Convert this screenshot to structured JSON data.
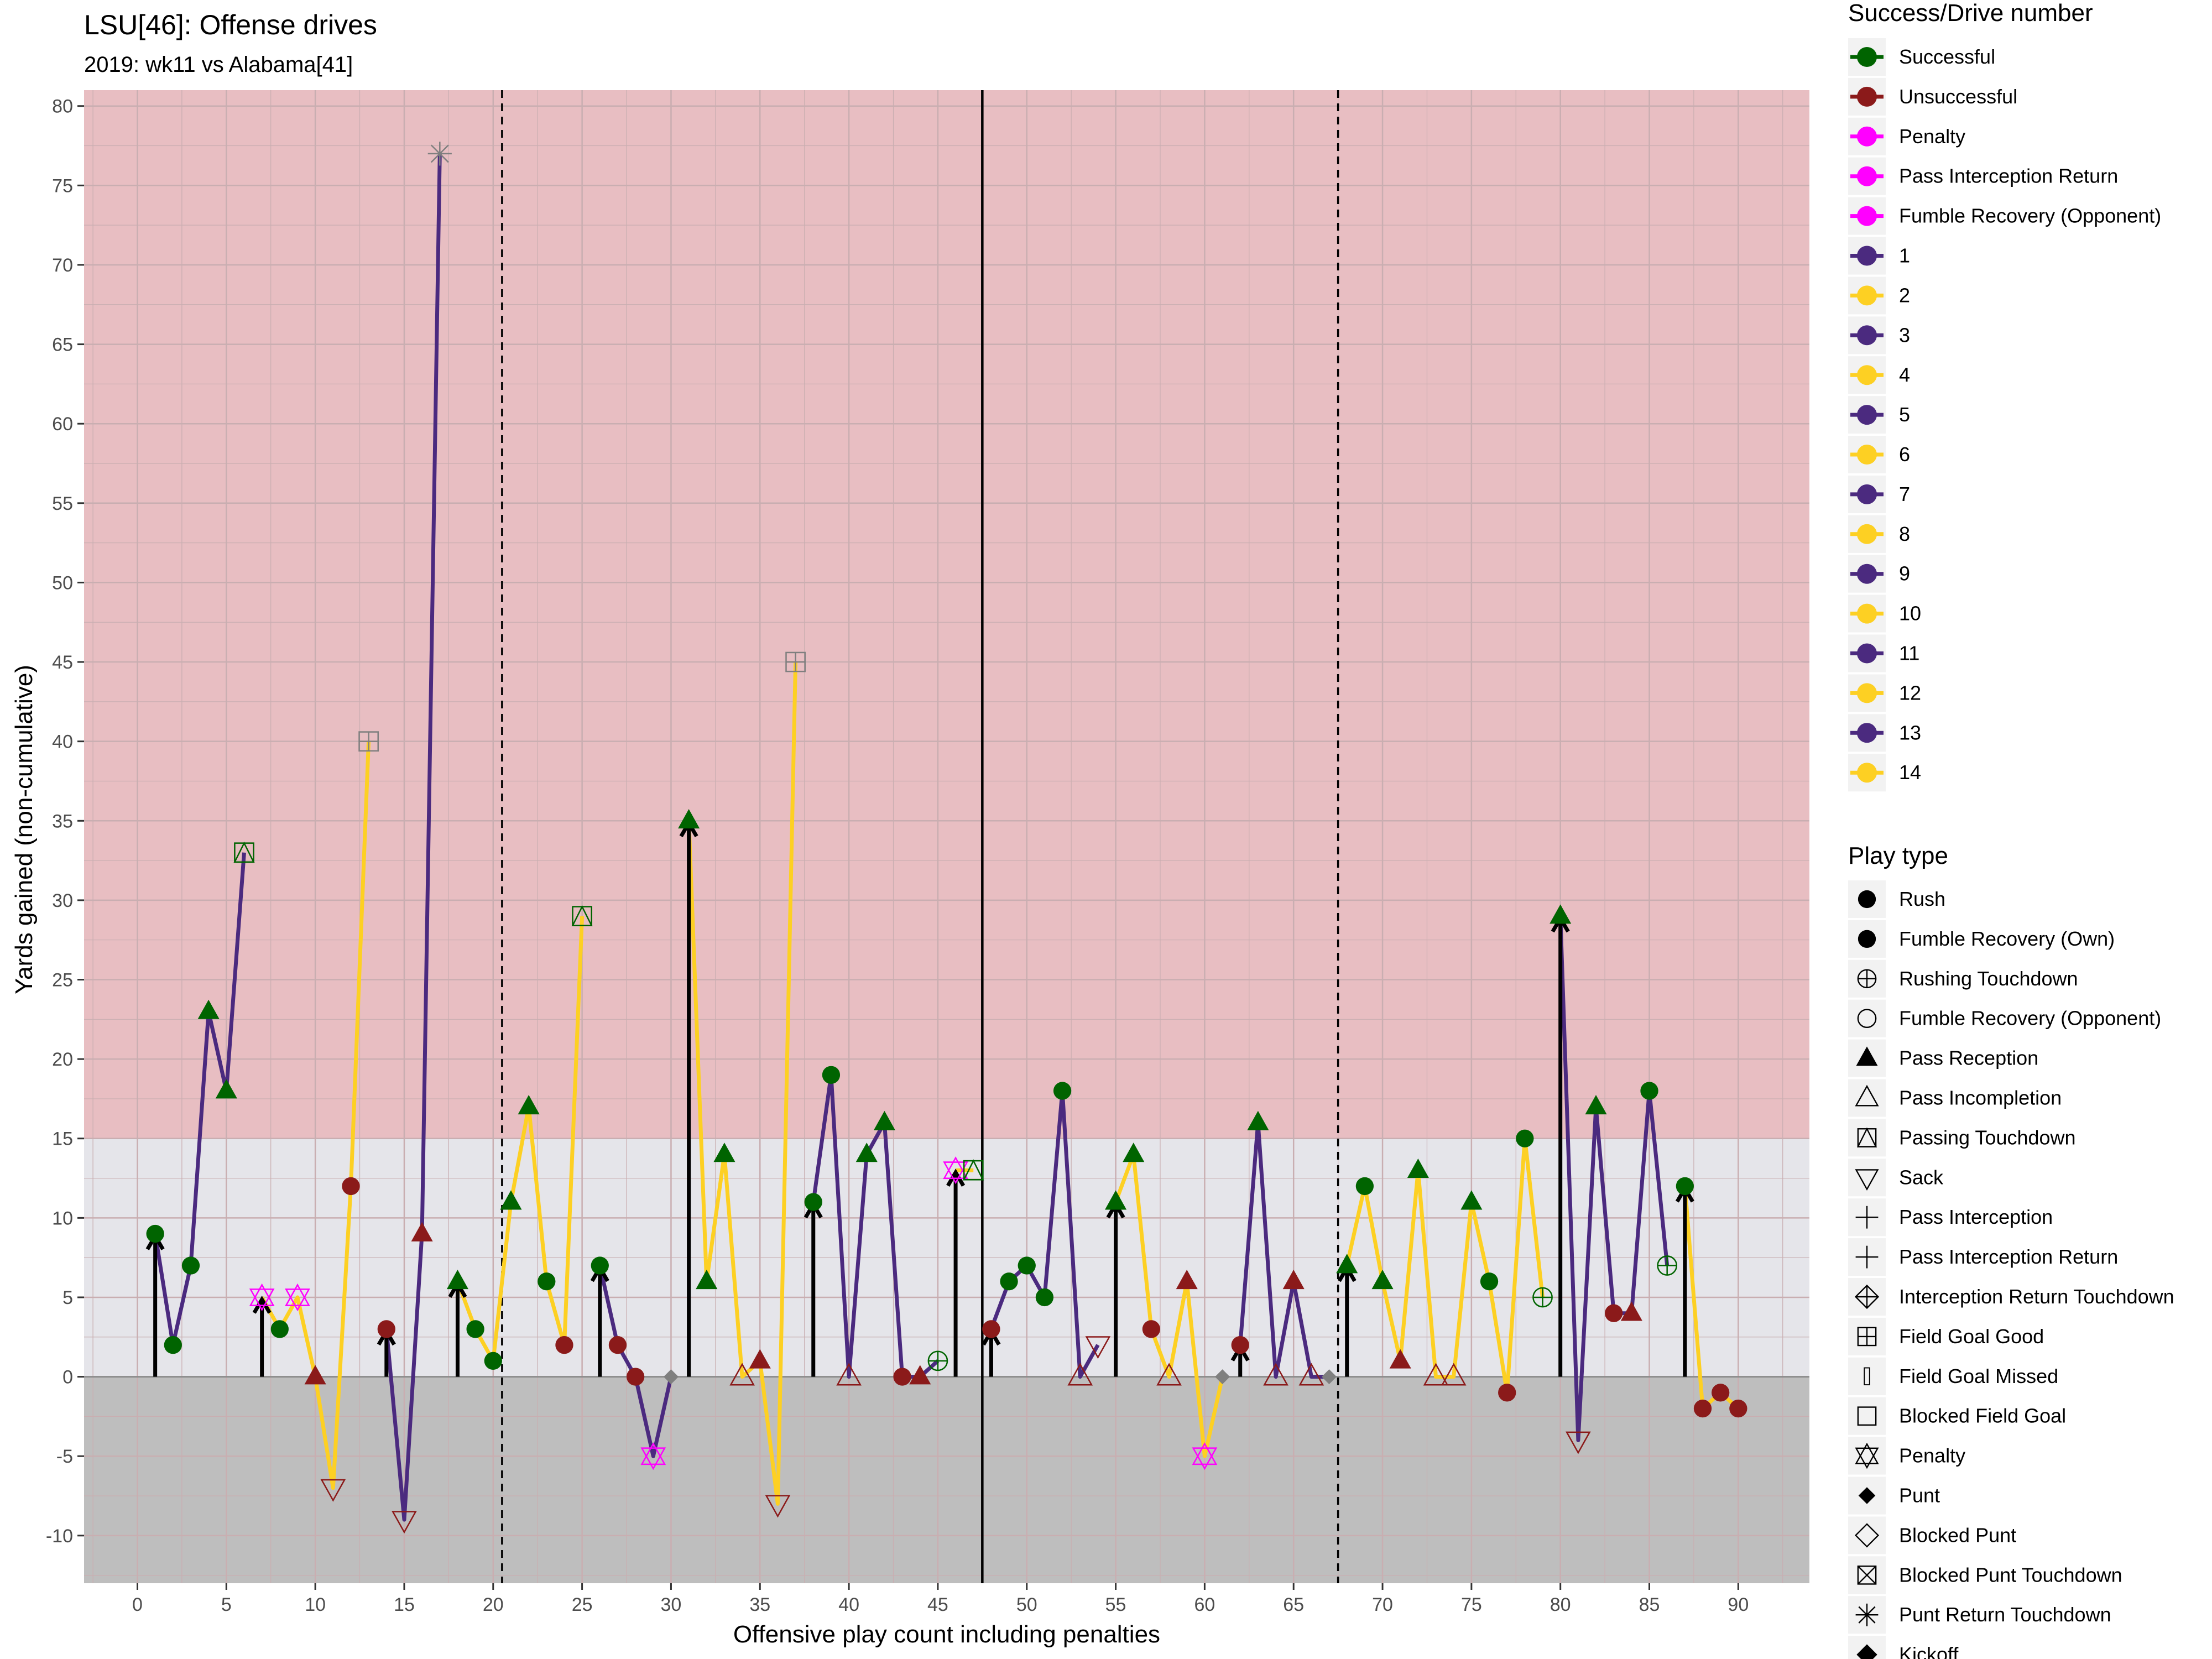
{
  "chart_data": {
    "type": "line",
    "title": "LSU[46]: Offense drives",
    "subtitle": "2019: wk11 vs Alabama[41]",
    "xlabel": "Offensive play count including penalties",
    "ylabel": "Yards gained (non-cumulative)",
    "xlim": [
      -3,
      94
    ],
    "ylim": [
      -13,
      81
    ],
    "x_ticks": [
      0,
      5,
      10,
      15,
      20,
      25,
      30,
      35,
      40,
      45,
      50,
      55,
      60,
      65,
      70,
      75,
      80,
      85,
      90
    ],
    "y_ticks": [
      -10,
      -5,
      0,
      5,
      10,
      15,
      20,
      25,
      30,
      35,
      40,
      45,
      50,
      55,
      60,
      65,
      70,
      75,
      80
    ],
    "grid": true,
    "legend_position": "right",
    "background_bands": [
      {
        "from": 15,
        "to": 81,
        "color": "#E8BEC2"
      },
      {
        "from": 0,
        "to": 15,
        "color": "#E5E5EA"
      },
      {
        "from": -13,
        "to": 0,
        "color": "#BEBEBE"
      }
    ],
    "vertical_lines": [
      {
        "x": 20.5,
        "style": "dashed"
      },
      {
        "x": 47.5,
        "style": "solid"
      },
      {
        "x": 67.5,
        "style": "dashed"
      }
    ],
    "drive_colors": {
      "odd": "#4B2A7F",
      "even": "#FDD023"
    },
    "success_colors": {
      "Successful": "#006400",
      "Unsuccessful": "#8B1A1A",
      "Penalty": "#FF00FF",
      "Other": "#7F7F7F"
    },
    "first_down_arrows": [
      {
        "x": 1,
        "y": 9
      },
      {
        "x": 7,
        "y": 5
      },
      {
        "x": 14,
        "y": 3
      },
      {
        "x": 18,
        "y": 6
      },
      {
        "x": 26,
        "y": 7
      },
      {
        "x": 31,
        "y": 35
      },
      {
        "x": 38,
        "y": 11
      },
      {
        "x": 46,
        "y": 13
      },
      {
        "x": 48,
        "y": 3
      },
      {
        "x": 55,
        "y": 11
      },
      {
        "x": 62,
        "y": 2
      },
      {
        "x": 68,
        "y": 7
      },
      {
        "x": 80,
        "y": 29
      },
      {
        "x": 87,
        "y": 12
      }
    ],
    "drives": [
      {
        "drive": 1,
        "points": [
          {
            "x": 1,
            "y": 9,
            "shape": "Rush",
            "result": "Successful"
          },
          {
            "x": 2,
            "y": 2,
            "shape": "Rush",
            "result": "Successful"
          },
          {
            "x": 3,
            "y": 7,
            "shape": "Rush",
            "result": "Successful"
          },
          {
            "x": 4,
            "y": 23,
            "shape": "Pass Reception",
            "result": "Successful"
          },
          {
            "x": 5,
            "y": 18,
            "shape": "Pass Reception",
            "result": "Successful"
          },
          {
            "x": 6,
            "y": 33,
            "shape": "Passing Touchdown",
            "result": "Successful"
          }
        ]
      },
      {
        "drive": 2,
        "points": [
          {
            "x": 7,
            "y": 5,
            "shape": "Penalty",
            "result": "Penalty"
          },
          {
            "x": 8,
            "y": 3,
            "shape": "Rush",
            "result": "Successful"
          },
          {
            "x": 9,
            "y": 5,
            "shape": "Penalty",
            "result": "Penalty"
          },
          {
            "x": 10,
            "y": 0,
            "shape": "Pass Reception",
            "result": "Unsuccessful"
          },
          {
            "x": 11,
            "y": -7,
            "shape": "Sack",
            "result": "Unsuccessful"
          },
          {
            "x": 12,
            "y": 12,
            "shape": "Rush",
            "result": "Unsuccessful"
          },
          {
            "x": 13,
            "y": 40,
            "shape": "Field Goal Good",
            "result": "Other"
          }
        ]
      },
      {
        "drive": 3,
        "points": [
          {
            "x": 14,
            "y": 3,
            "shape": "Rush",
            "result": "Unsuccessful"
          },
          {
            "x": 15,
            "y": -9,
            "shape": "Sack",
            "result": "Unsuccessful"
          },
          {
            "x": 16,
            "y": 9,
            "shape": "Pass Reception",
            "result": "Unsuccessful"
          },
          {
            "x": 17,
            "y": 77,
            "shape": "Punt Return Touchdown",
            "result": "Other"
          }
        ]
      },
      {
        "drive": 4,
        "points": [
          {
            "x": 18,
            "y": 6,
            "shape": "Pass Reception",
            "result": "Successful"
          },
          {
            "x": 19,
            "y": 3,
            "shape": "Rush",
            "result": "Successful"
          },
          {
            "x": 20,
            "y": 1,
            "shape": "Rush",
            "result": "Successful"
          },
          {
            "x": 21,
            "y": 11,
            "shape": "Pass Reception",
            "result": "Successful"
          },
          {
            "x": 22,
            "y": 17,
            "shape": "Pass Reception",
            "result": "Successful"
          },
          {
            "x": 23,
            "y": 6,
            "shape": "Rush",
            "result": "Successful"
          },
          {
            "x": 24,
            "y": 2,
            "shape": "Rush",
            "result": "Unsuccessful"
          },
          {
            "x": 25,
            "y": 29,
            "shape": "Passing Touchdown",
            "result": "Successful"
          }
        ]
      },
      {
        "drive": 5,
        "points": [
          {
            "x": 26,
            "y": 7,
            "shape": "Rush",
            "result": "Successful"
          },
          {
            "x": 27,
            "y": 2,
            "shape": "Rush",
            "result": "Unsuccessful"
          },
          {
            "x": 28,
            "y": 0,
            "shape": "Rush",
            "result": "Unsuccessful"
          },
          {
            "x": 29,
            "y": -5,
            "shape": "Penalty",
            "result": "Penalty"
          },
          {
            "x": 30,
            "y": 0,
            "shape": "Punt",
            "result": "Other"
          }
        ]
      },
      {
        "drive": 6,
        "points": [
          {
            "x": 31,
            "y": 35,
            "shape": "Pass Reception",
            "result": "Successful"
          },
          {
            "x": 32,
            "y": 6,
            "shape": "Pass Reception",
            "result": "Successful"
          },
          {
            "x": 33,
            "y": 14,
            "shape": "Pass Reception",
            "result": "Successful"
          },
          {
            "x": 34,
            "y": 0,
            "shape": "Pass Incompletion",
            "result": "Unsuccessful"
          },
          {
            "x": 35,
            "y": 1,
            "shape": "Pass Reception",
            "result": "Unsuccessful"
          },
          {
            "x": 36,
            "y": -8,
            "shape": "Sack",
            "result": "Unsuccessful"
          },
          {
            "x": 37,
            "y": 45,
            "shape": "Field Goal Good",
            "result": "Other"
          }
        ]
      },
      {
        "drive": 7,
        "points": [
          {
            "x": 38,
            "y": 11,
            "shape": "Rush",
            "result": "Successful"
          },
          {
            "x": 39,
            "y": 19,
            "shape": "Rush",
            "result": "Successful"
          },
          {
            "x": 40,
            "y": 0,
            "shape": "Pass Incompletion",
            "result": "Unsuccessful"
          },
          {
            "x": 41,
            "y": 14,
            "shape": "Pass Reception",
            "result": "Successful"
          },
          {
            "x": 42,
            "y": 16,
            "shape": "Pass Reception",
            "result": "Successful"
          },
          {
            "x": 43,
            "y": 0,
            "shape": "Rush",
            "result": "Unsuccessful"
          },
          {
            "x": 44,
            "y": 0,
            "shape": "Pass Reception",
            "result": "Unsuccessful"
          },
          {
            "x": 45,
            "y": 1,
            "shape": "Rushing Touchdown",
            "result": "Successful"
          }
        ]
      },
      {
        "drive": 8,
        "points": [
          {
            "x": 46,
            "y": 13,
            "shape": "Penalty",
            "result": "Penalty"
          },
          {
            "x": 47,
            "y": 13,
            "shape": "Passing Touchdown",
            "result": "Successful"
          }
        ]
      },
      {
        "drive": 9,
        "points": [
          {
            "x": 48,
            "y": 3,
            "shape": "Rush",
            "result": "Unsuccessful"
          },
          {
            "x": 49,
            "y": 6,
            "shape": "Rush",
            "result": "Successful"
          },
          {
            "x": 50,
            "y": 7,
            "shape": "Rush",
            "result": "Successful"
          },
          {
            "x": 51,
            "y": 5,
            "shape": "Rush",
            "result": "Successful"
          },
          {
            "x": 52,
            "y": 18,
            "shape": "Rush",
            "result": "Successful"
          },
          {
            "x": 53,
            "y": 0,
            "shape": "Pass Incompletion",
            "result": "Unsuccessful"
          },
          {
            "x": 54,
            "y": 2,
            "shape": "Sack",
            "result": "Unsuccessful"
          }
        ]
      },
      {
        "drive": 10,
        "points": [
          {
            "x": 55,
            "y": 11,
            "shape": "Pass Reception",
            "result": "Successful"
          },
          {
            "x": 56,
            "y": 14,
            "shape": "Pass Reception",
            "result": "Successful"
          },
          {
            "x": 57,
            "y": 3,
            "shape": "Rush",
            "result": "Unsuccessful"
          },
          {
            "x": 58,
            "y": 0,
            "shape": "Pass Incompletion",
            "result": "Unsuccessful"
          },
          {
            "x": 59,
            "y": 6,
            "shape": "Pass Reception",
            "result": "Unsuccessful"
          },
          {
            "x": 60,
            "y": -5,
            "shape": "Penalty",
            "result": "Penalty"
          },
          {
            "x": 61,
            "y": 0,
            "shape": "Punt",
            "result": "Other"
          }
        ]
      },
      {
        "drive": 11,
        "points": [
          {
            "x": 62,
            "y": 2,
            "shape": "Rush",
            "result": "Unsuccessful"
          },
          {
            "x": 63,
            "y": 16,
            "shape": "Pass Reception",
            "result": "Successful"
          },
          {
            "x": 64,
            "y": 0,
            "shape": "Pass Incompletion",
            "result": "Unsuccessful"
          },
          {
            "x": 65,
            "y": 6,
            "shape": "Pass Reception",
            "result": "Unsuccessful"
          },
          {
            "x": 66,
            "y": 0,
            "shape": "Pass Incompletion",
            "result": "Unsuccessful"
          },
          {
            "x": 67,
            "y": 0,
            "shape": "Punt",
            "result": "Other"
          }
        ]
      },
      {
        "drive": 12,
        "points": [
          {
            "x": 68,
            "y": 7,
            "shape": "Pass Reception",
            "result": "Successful"
          },
          {
            "x": 69,
            "y": 12,
            "shape": "Rush",
            "result": "Successful"
          },
          {
            "x": 70,
            "y": 6,
            "shape": "Pass Reception",
            "result": "Successful"
          },
          {
            "x": 71,
            "y": 1,
            "shape": "Pass Reception",
            "result": "Unsuccessful"
          },
          {
            "x": 72,
            "y": 13,
            "shape": "Pass Reception",
            "result": "Successful"
          },
          {
            "x": 73,
            "y": 0,
            "shape": "Pass Incompletion",
            "result": "Unsuccessful"
          },
          {
            "x": 74,
            "y": 0,
            "shape": "Pass Incompletion",
            "result": "Unsuccessful"
          },
          {
            "x": 75,
            "y": 11,
            "shape": "Pass Reception",
            "result": "Successful"
          },
          {
            "x": 76,
            "y": 6,
            "shape": "Rush",
            "result": "Successful"
          },
          {
            "x": 77,
            "y": -1,
            "shape": "Rush",
            "result": "Unsuccessful"
          },
          {
            "x": 78,
            "y": 15,
            "shape": "Rush",
            "result": "Successful"
          },
          {
            "x": 79,
            "y": 5,
            "shape": "Rushing Touchdown",
            "result": "Successful"
          }
        ]
      },
      {
        "drive": 13,
        "points": [
          {
            "x": 80,
            "y": 29,
            "shape": "Pass Reception",
            "result": "Successful"
          },
          {
            "x": 81,
            "y": -4,
            "shape": "Sack",
            "result": "Unsuccessful"
          },
          {
            "x": 82,
            "y": 17,
            "shape": "Pass Reception",
            "result": "Successful"
          },
          {
            "x": 83,
            "y": 4,
            "shape": "Rush",
            "result": "Unsuccessful"
          },
          {
            "x": 84,
            "y": 4,
            "shape": "Pass Reception",
            "result": "Unsuccessful"
          },
          {
            "x": 85,
            "y": 18,
            "shape": "Rush",
            "result": "Successful"
          },
          {
            "x": 86,
            "y": 7,
            "shape": "Rushing Touchdown",
            "result": "Successful"
          }
        ]
      },
      {
        "drive": 14,
        "points": [
          {
            "x": 87,
            "y": 12,
            "shape": "Rush",
            "result": "Successful"
          },
          {
            "x": 88,
            "y": -2,
            "shape": "Rush",
            "result": "Unsuccessful"
          },
          {
            "x": 89,
            "y": -1,
            "shape": "Rush",
            "result": "Unsuccessful"
          },
          {
            "x": 90,
            "y": -2,
            "shape": "Rush",
            "result": "Unsuccessful"
          }
        ]
      }
    ],
    "legend_success": {
      "title": "Success/Drive number",
      "items": [
        {
          "label": "Successful",
          "color": "#006400"
        },
        {
          "label": "Unsuccessful",
          "color": "#8B1A1A"
        },
        {
          "label": "Penalty",
          "color": "#FF00FF"
        },
        {
          "label": "Pass Interception Return",
          "color": "#FF00FF"
        },
        {
          "label": "Fumble Recovery (Opponent)",
          "color": "#FF00FF"
        },
        {
          "label": "1",
          "color": "#4B2A7F"
        },
        {
          "label": "2",
          "color": "#FDD023"
        },
        {
          "label": "3",
          "color": "#4B2A7F"
        },
        {
          "label": "4",
          "color": "#FDD023"
        },
        {
          "label": "5",
          "color": "#4B2A7F"
        },
        {
          "label": "6",
          "color": "#FDD023"
        },
        {
          "label": "7",
          "color": "#4B2A7F"
        },
        {
          "label": "8",
          "color": "#FDD023"
        },
        {
          "label": "9",
          "color": "#4B2A7F"
        },
        {
          "label": "10",
          "color": "#FDD023"
        },
        {
          "label": "11",
          "color": "#4B2A7F"
        },
        {
          "label": "12",
          "color": "#FDD023"
        },
        {
          "label": "13",
          "color": "#4B2A7F"
        },
        {
          "label": "14",
          "color": "#FDD023"
        }
      ]
    },
    "legend_playtype": {
      "title": "Play type",
      "items": [
        {
          "label": "Rush",
          "shape": "Rush"
        },
        {
          "label": "Fumble Recovery (Own)",
          "shape": "Fumble Recovery (Own)"
        },
        {
          "label": "Rushing Touchdown",
          "shape": "Rushing Touchdown"
        },
        {
          "label": "Fumble Recovery (Opponent)",
          "shape": "Fumble Recovery (Opponent)"
        },
        {
          "label": "Pass Reception",
          "shape": "Pass Reception"
        },
        {
          "label": "Pass Incompletion",
          "shape": "Pass Incompletion"
        },
        {
          "label": "Passing Touchdown",
          "shape": "Passing Touchdown"
        },
        {
          "label": "Sack",
          "shape": "Sack"
        },
        {
          "label": "Pass Interception",
          "shape": "Pass Interception"
        },
        {
          "label": "Pass Interception Return",
          "shape": "Pass Interception Return"
        },
        {
          "label": "Interception Return Touchdown",
          "shape": "Interception Return Touchdown"
        },
        {
          "label": "Field Goal Good",
          "shape": "Field Goal Good"
        },
        {
          "label": "Field Goal Missed",
          "shape": "Field Goal Missed"
        },
        {
          "label": "Blocked Field Goal",
          "shape": "Blocked Field Goal"
        },
        {
          "label": "Penalty",
          "shape": "Penalty"
        },
        {
          "label": "Punt",
          "shape": "Punt"
        },
        {
          "label": "Blocked Punt",
          "shape": "Blocked Punt"
        },
        {
          "label": "Blocked Punt Touchdown",
          "shape": "Blocked Punt Touchdown"
        },
        {
          "label": "Punt Return Touchdown",
          "shape": "Punt Return Touchdown"
        },
        {
          "label": "Kickoff",
          "shape": "Kickoff"
        }
      ]
    }
  }
}
